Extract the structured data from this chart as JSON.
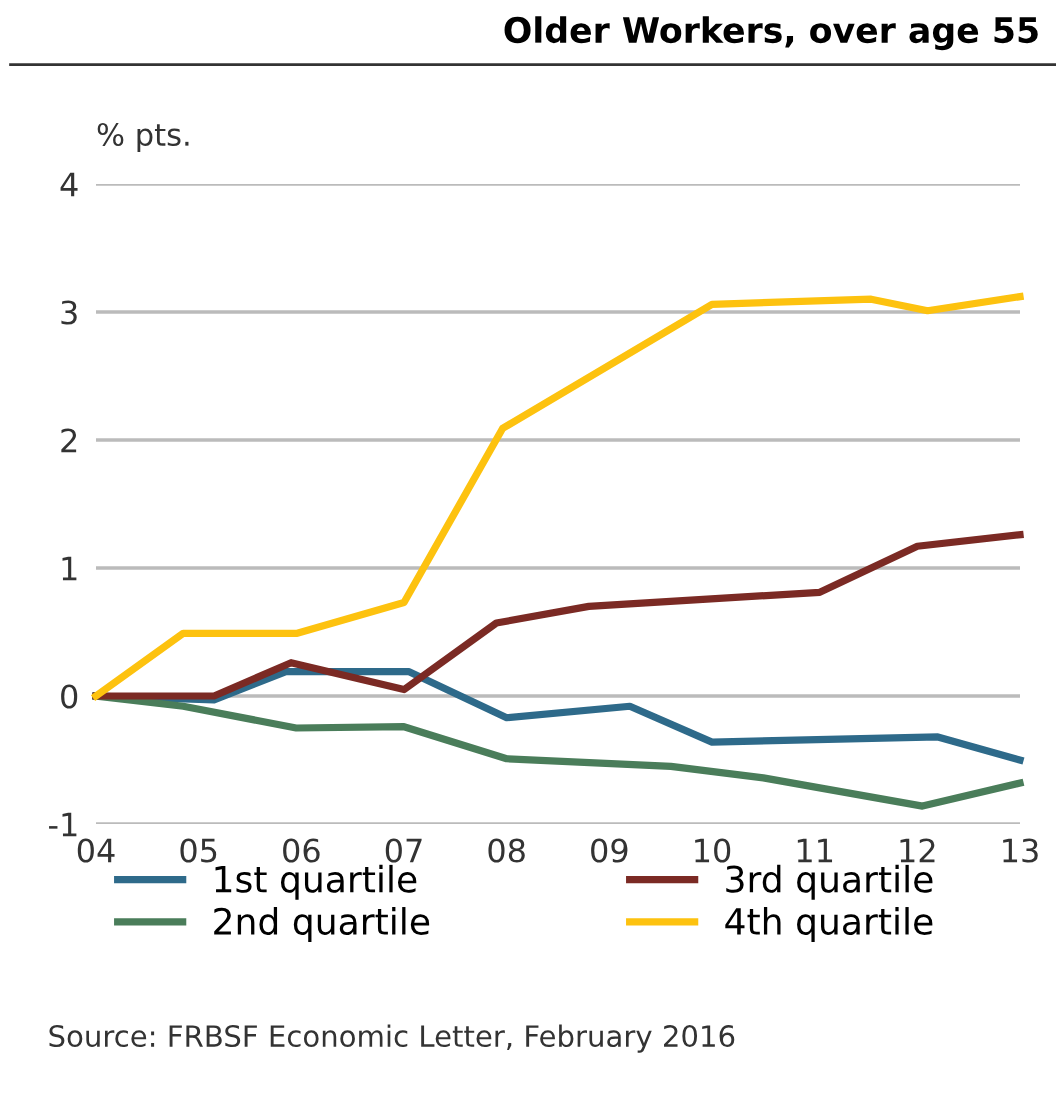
{
  "chart_data": {
    "type": "line",
    "title": "Older Workers, over age 55",
    "ylabel": "% pts.",
    "xlim": [
      2004,
      2013
    ],
    "xticks": [
      {
        "value": 2004,
        "label": "04"
      },
      {
        "value": 2005,
        "label": "05"
      },
      {
        "value": 2006,
        "label": "06"
      },
      {
        "value": 2007,
        "label": "07"
      },
      {
        "value": 2008,
        "label": "08"
      },
      {
        "value": 2009,
        "label": "09"
      },
      {
        "value": 2010,
        "label": "10"
      },
      {
        "value": 2011,
        "label": "11"
      },
      {
        "value": 2012,
        "label": "12"
      },
      {
        "value": 2013,
        "label": "13"
      }
    ],
    "ylim": [
      -1,
      4
    ],
    "yticks": [
      -1,
      0,
      1,
      2,
      3,
      4
    ],
    "grid": "y",
    "legend": "bottom",
    "marker": "none",
    "line_style": "solid",
    "series": [
      {
        "name": "1st quartile",
        "color": "#2e6a8a",
        "x": [
          2004,
          2005.15,
          2005.85,
          2007.05,
          2008.0,
          2009.2,
          2010.0,
          2012.2,
          2013
        ],
        "values": [
          0,
          -0.03,
          0.19,
          0.19,
          -0.17,
          -0.08,
          -0.36,
          -0.32,
          -0.5
        ]
      },
      {
        "name": "2nd quartile",
        "color": "#4a7d5a",
        "x": [
          2004,
          2004.85,
          2005.95,
          2007.0,
          2008.0,
          2009.6,
          2010.5,
          2012.05,
          2013
        ],
        "values": [
          0,
          -0.08,
          -0.25,
          -0.24,
          -0.49,
          -0.55,
          -0.64,
          -0.86,
          -0.68
        ]
      },
      {
        "name": "3rd quartile",
        "color": "#7b2a24",
        "x": [
          2004,
          2005.15,
          2005.9,
          2007.0,
          2007.9,
          2008.8,
          2011.05,
          2012.0,
          2013
        ],
        "values": [
          0,
          0,
          0.26,
          0.05,
          0.57,
          0.7,
          0.81,
          1.17,
          1.26
        ]
      },
      {
        "name": "4th quartile",
        "color": "#fdc20f",
        "x": [
          2004,
          2004.85,
          2005.96,
          2007.0,
          2007.96,
          2010.0,
          2011.55,
          2012.1,
          2013
        ],
        "values": [
          0,
          0.49,
          0.49,
          0.73,
          2.09,
          3.06,
          3.1,
          3.01,
          3.12
        ]
      }
    ],
    "annotations": [
      "Source: FRBSF Economic Letter, February 2016"
    ]
  }
}
